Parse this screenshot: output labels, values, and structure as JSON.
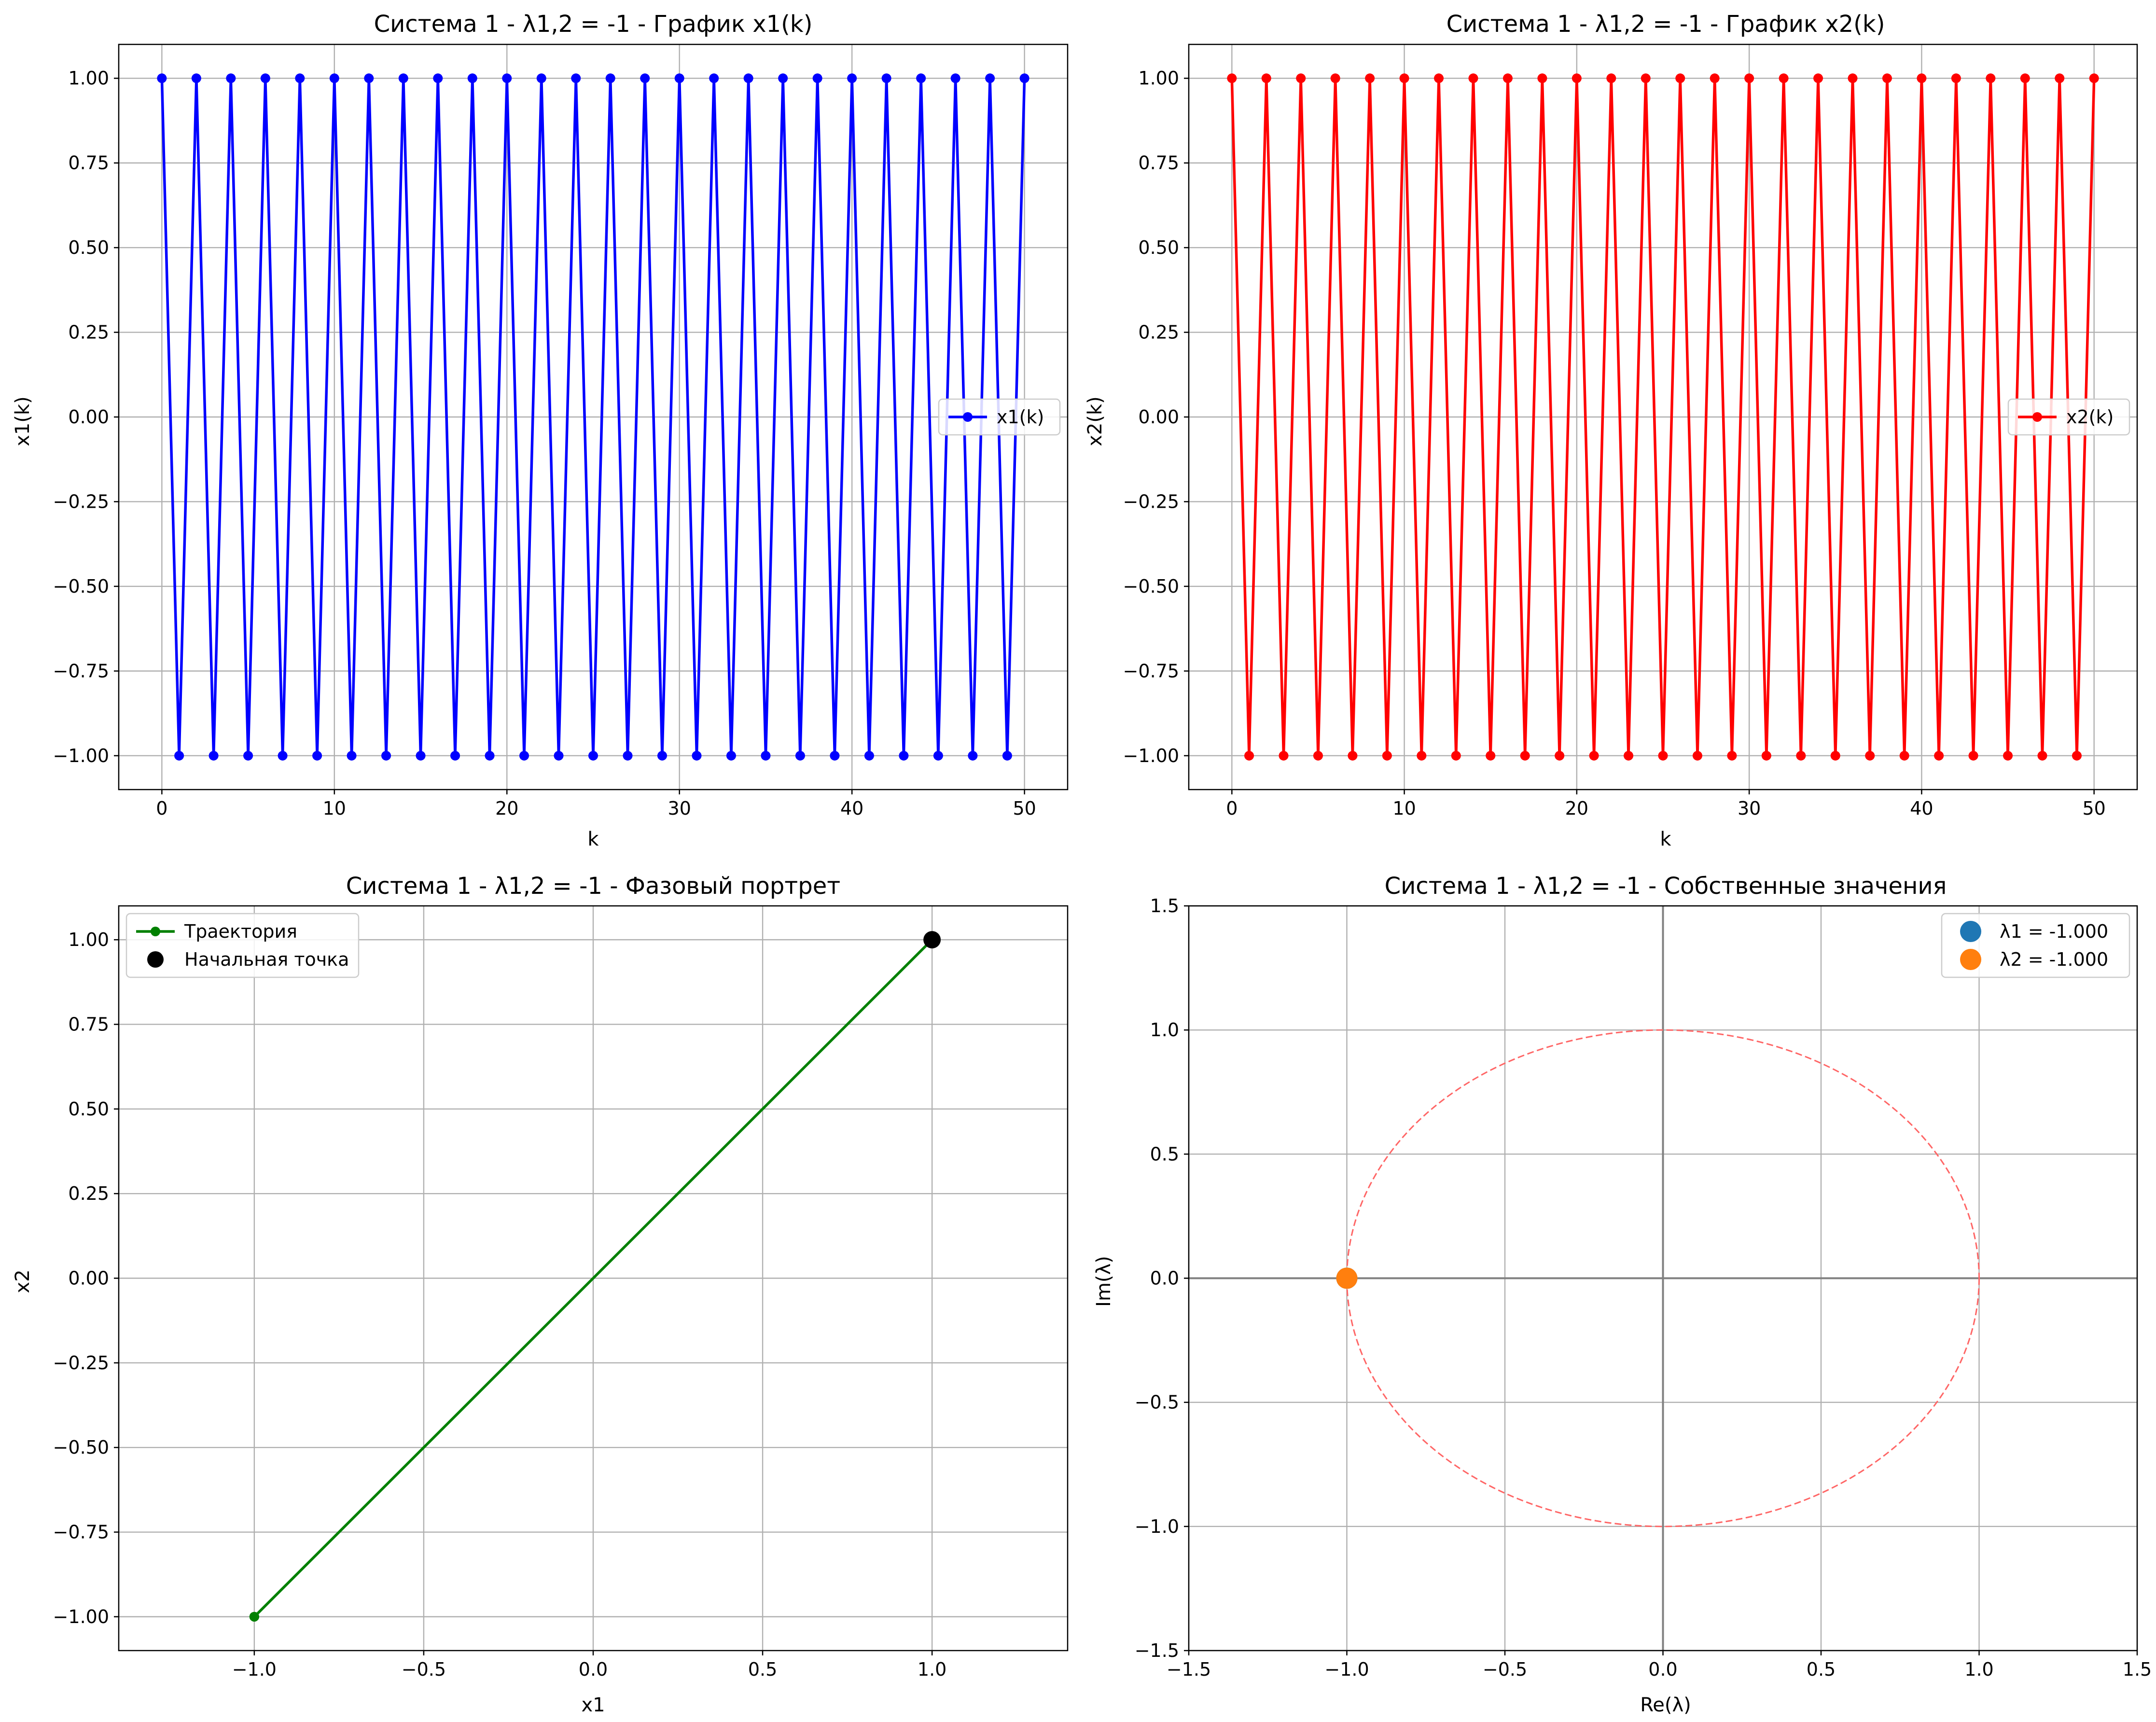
{
  "colors": {
    "blue": "#0000ff",
    "red": "#ff0000",
    "green": "#008000",
    "black": "#000000",
    "tab_blue": "#1f77b4",
    "tab_orange": "#ff7f0e",
    "unit_circle": "#ff6666",
    "grid": "#b0b0b0",
    "axis_line": "#808080"
  },
  "chart_data": [
    {
      "type": "line",
      "title": "Система 1 - λ1,2 = -1 - График x1(k)",
      "xlabel": "k",
      "ylabel": "x1(k)",
      "xlim": [
        -2.5,
        52.5
      ],
      "ylim": [
        -1.1,
        1.1
      ],
      "xticks": [
        0,
        10,
        20,
        30,
        40,
        50
      ],
      "xtick_labels": [
        "0",
        "10",
        "20",
        "30",
        "40",
        "50"
      ],
      "yticks": [
        1.0,
        0.75,
        0.5,
        0.25,
        0.0,
        -0.25,
        -0.5,
        -0.75,
        -1.0
      ],
      "ytick_labels": [
        "1.00",
        "0.75",
        "0.50",
        "0.25",
        "0.00",
        "−0.25",
        "−0.50",
        "−0.75",
        "−1.00"
      ],
      "grid": true,
      "legend": "center-right",
      "series": [
        {
          "name": "x1(k)",
          "color": "#0000ff",
          "marker": "circle",
          "x": [
            0,
            1,
            2,
            3,
            4,
            5,
            6,
            7,
            8,
            9,
            10,
            11,
            12,
            13,
            14,
            15,
            16,
            17,
            18,
            19,
            20,
            21,
            22,
            23,
            24,
            25,
            26,
            27,
            28,
            29,
            30,
            31,
            32,
            33,
            34,
            35,
            36,
            37,
            38,
            39,
            40,
            41,
            42,
            43,
            44,
            45,
            46,
            47,
            48,
            49,
            50
          ],
          "y": [
            1,
            -1,
            1,
            -1,
            1,
            -1,
            1,
            -1,
            1,
            -1,
            1,
            -1,
            1,
            -1,
            1,
            -1,
            1,
            -1,
            1,
            -1,
            1,
            -1,
            1,
            -1,
            1,
            -1,
            1,
            -1,
            1,
            -1,
            1,
            -1,
            1,
            -1,
            1,
            -1,
            1,
            -1,
            1,
            -1,
            1,
            -1,
            1,
            -1,
            1,
            -1,
            1,
            -1,
            1,
            -1,
            1
          ]
        }
      ]
    },
    {
      "type": "line",
      "title": "Система 1 - λ1,2 = -1 - График x2(k)",
      "xlabel": "k",
      "ylabel": "x2(k)",
      "xlim": [
        -2.5,
        52.5
      ],
      "ylim": [
        -1.1,
        1.1
      ],
      "xticks": [
        0,
        10,
        20,
        30,
        40,
        50
      ],
      "xtick_labels": [
        "0",
        "10",
        "20",
        "30",
        "40",
        "50"
      ],
      "yticks": [
        1.0,
        0.75,
        0.5,
        0.25,
        0.0,
        -0.25,
        -0.5,
        -0.75,
        -1.0
      ],
      "ytick_labels": [
        "1.00",
        "0.75",
        "0.50",
        "0.25",
        "0.00",
        "−0.25",
        "−0.50",
        "−0.75",
        "−1.00"
      ],
      "grid": true,
      "legend": "center-right",
      "series": [
        {
          "name": "x2(k)",
          "color": "#ff0000",
          "marker": "circle",
          "x": [
            0,
            1,
            2,
            3,
            4,
            5,
            6,
            7,
            8,
            9,
            10,
            11,
            12,
            13,
            14,
            15,
            16,
            17,
            18,
            19,
            20,
            21,
            22,
            23,
            24,
            25,
            26,
            27,
            28,
            29,
            30,
            31,
            32,
            33,
            34,
            35,
            36,
            37,
            38,
            39,
            40,
            41,
            42,
            43,
            44,
            45,
            46,
            47,
            48,
            49,
            50
          ],
          "y": [
            1,
            -1,
            1,
            -1,
            1,
            -1,
            1,
            -1,
            1,
            -1,
            1,
            -1,
            1,
            -1,
            1,
            -1,
            1,
            -1,
            1,
            -1,
            1,
            -1,
            1,
            -1,
            1,
            -1,
            1,
            -1,
            1,
            -1,
            1,
            -1,
            1,
            -1,
            1,
            -1,
            1,
            -1,
            1,
            -1,
            1,
            -1,
            1,
            -1,
            1,
            -1,
            1,
            -1,
            1,
            -1,
            1
          ]
        }
      ]
    },
    {
      "type": "line",
      "title": "Система 1 - λ1,2 = -1 - Фазовый портрет",
      "xlabel": "x1",
      "ylabel": "x2",
      "xlim": [
        -1.4,
        1.4
      ],
      "ylim": [
        -1.1,
        1.1
      ],
      "xticks": [
        -1.0,
        -0.5,
        0.0,
        0.5,
        1.0
      ],
      "xtick_labels": [
        "−1.0",
        "−0.5",
        "0.0",
        "0.5",
        "1.0"
      ],
      "yticks": [
        1.0,
        0.75,
        0.5,
        0.25,
        0.0,
        -0.25,
        -0.5,
        -0.75,
        -1.0
      ],
      "ytick_labels": [
        "1.00",
        "0.75",
        "0.50",
        "0.25",
        "0.00",
        "−0.25",
        "−0.50",
        "−0.75",
        "−1.00"
      ],
      "grid": true,
      "legend": "top-left",
      "series": [
        {
          "name": "Траектория",
          "color": "#008000",
          "marker": "circle",
          "x": [
            1,
            -1,
            1,
            -1,
            1,
            -1,
            1,
            -1,
            1,
            -1,
            1
          ],
          "y": [
            1,
            -1,
            1,
            -1,
            1,
            -1,
            1,
            -1,
            1,
            -1,
            1
          ]
        },
        {
          "name": "Начальная точка",
          "color": "#000000",
          "marker": "circle-large",
          "x": [
            1
          ],
          "y": [
            1
          ]
        }
      ]
    },
    {
      "type": "scatter",
      "title": "Система 1 - λ1,2 = -1 - Собственные значения",
      "xlabel": "Re(λ)",
      "ylabel": "Im(λ)",
      "xlim": [
        -1.5,
        1.5
      ],
      "ylim": [
        -1.5,
        1.5
      ],
      "xticks": [
        -1.5,
        -1.0,
        -0.5,
        0.0,
        0.5,
        1.0,
        1.5
      ],
      "xtick_labels": [
        "−1.5",
        "−1.0",
        "−0.5",
        "0.0",
        "0.5",
        "1.0",
        "1.5"
      ],
      "yticks": [
        1.5,
        1.0,
        0.5,
        0.0,
        -0.5,
        -1.0,
        -1.5
      ],
      "ytick_labels": [
        "1.5",
        "1.0",
        "0.5",
        "0.0",
        "−0.5",
        "−1.0",
        "−1.5"
      ],
      "grid": true,
      "unit_circle": true,
      "legend": "top-right",
      "series": [
        {
          "name": "λ1 = -1.000",
          "color": "#1f77b4",
          "x": [
            -1.0
          ],
          "y": [
            0.0
          ]
        },
        {
          "name": "λ2 = -1.000",
          "color": "#ff7f0e",
          "x": [
            -1.0
          ],
          "y": [
            0.0
          ]
        }
      ]
    }
  ]
}
